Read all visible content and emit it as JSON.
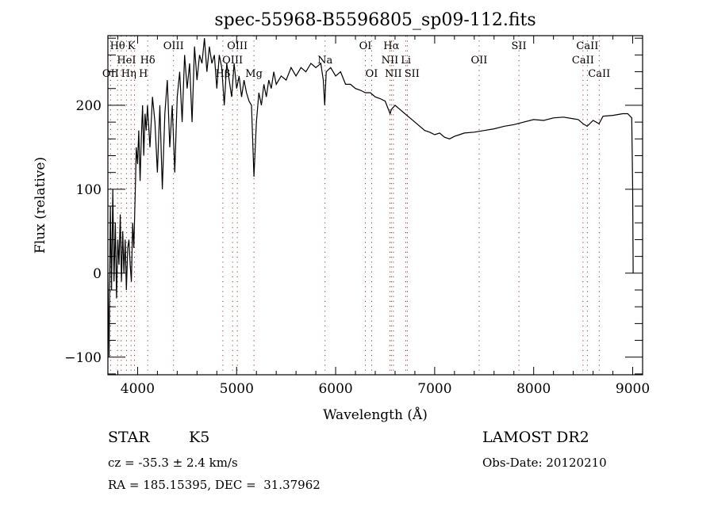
{
  "chart_data": {
    "type": "line",
    "title": "spec-55968-B5596805_sp09-112.fits",
    "xlabel": "Wavelength (Å)",
    "ylabel": "Flux (relative)",
    "xlim": [
      3700,
      9100
    ],
    "ylim": [
      -121,
      283
    ],
    "xticks": [
      4000,
      5000,
      6000,
      7000,
      8000,
      9000
    ],
    "yticks": [
      -100,
      0,
      100,
      200
    ],
    "grid": false,
    "colors": {
      "line": "#000000",
      "marker_lines": "#8b3a2a"
    },
    "spectrum": [
      [
        3700,
        0
      ],
      [
        3712,
        -100
      ],
      [
        3725,
        80
      ],
      [
        3737,
        -20
      ],
      [
        3750,
        100
      ],
      [
        3762,
        -10
      ],
      [
        3775,
        60
      ],
      [
        3787,
        -30
      ],
      [
        3800,
        40
      ],
      [
        3812,
        10
      ],
      [
        3825,
        70
      ],
      [
        3837,
        -10
      ],
      [
        3850,
        50
      ],
      [
        3862,
        0
      ],
      [
        3875,
        40
      ],
      [
        3887,
        -20
      ],
      [
        3900,
        30
      ],
      [
        3912,
        40
      ],
      [
        3925,
        10
      ],
      [
        3937,
        -10
      ],
      [
        3950,
        60
      ],
      [
        3962,
        30
      ],
      [
        3975,
        90
      ],
      [
        3987,
        150
      ],
      [
        4000,
        130
      ],
      [
        4012,
        170
      ],
      [
        4025,
        110
      ],
      [
        4037,
        160
      ],
      [
        4050,
        200
      ],
      [
        4062,
        140
      ],
      [
        4075,
        190
      ],
      [
        4087,
        170
      ],
      [
        4100,
        200
      ],
      [
        4125,
        150
      ],
      [
        4150,
        210
      ],
      [
        4175,
        180
      ],
      [
        4200,
        120
      ],
      [
        4225,
        200
      ],
      [
        4250,
        100
      ],
      [
        4275,
        190
      ],
      [
        4300,
        230
      ],
      [
        4325,
        150
      ],
      [
        4350,
        200
      ],
      [
        4375,
        120
      ],
      [
        4400,
        210
      ],
      [
        4425,
        240
      ],
      [
        4450,
        180
      ],
      [
        4475,
        260
      ],
      [
        4500,
        220
      ],
      [
        4525,
        250
      ],
      [
        4550,
        180
      ],
      [
        4575,
        270
      ],
      [
        4600,
        230
      ],
      [
        4625,
        260
      ],
      [
        4650,
        250
      ],
      [
        4675,
        280
      ],
      [
        4700,
        240
      ],
      [
        4725,
        270
      ],
      [
        4750,
        250
      ],
      [
        4775,
        260
      ],
      [
        4800,
        220
      ],
      [
        4825,
        260
      ],
      [
        4850,
        245
      ],
      [
        4875,
        200
      ],
      [
        4900,
        250
      ],
      [
        4925,
        230
      ],
      [
        4950,
        210
      ],
      [
        4975,
        250
      ],
      [
        5000,
        220
      ],
      [
        5025,
        235
      ],
      [
        5050,
        210
      ],
      [
        5075,
        230
      ],
      [
        5100,
        215
      ],
      [
        5125,
        205
      ],
      [
        5150,
        200
      ],
      [
        5175,
        115
      ],
      [
        5200,
        180
      ],
      [
        5225,
        215
      ],
      [
        5250,
        200
      ],
      [
        5275,
        225
      ],
      [
        5300,
        210
      ],
      [
        5325,
        230
      ],
      [
        5350,
        220
      ],
      [
        5375,
        240
      ],
      [
        5400,
        225
      ],
      [
        5450,
        235
      ],
      [
        5500,
        230
      ],
      [
        5550,
        245
      ],
      [
        5600,
        235
      ],
      [
        5650,
        245
      ],
      [
        5700,
        240
      ],
      [
        5750,
        250
      ],
      [
        5800,
        245
      ],
      [
        5850,
        250
      ],
      [
        5875,
        230
      ],
      [
        5890,
        200
      ],
      [
        5905,
        240
      ],
      [
        5950,
        245
      ],
      [
        6000,
        235
      ],
      [
        6050,
        240
      ],
      [
        6100,
        225
      ],
      [
        6150,
        225
      ],
      [
        6200,
        220
      ],
      [
        6250,
        218
      ],
      [
        6300,
        215
      ],
      [
        6350,
        215
      ],
      [
        6400,
        210
      ],
      [
        6450,
        208
      ],
      [
        6500,
        205
      ],
      [
        6550,
        190
      ],
      [
        6563,
        195
      ],
      [
        6600,
        200
      ],
      [
        6650,
        195
      ],
      [
        6700,
        190
      ],
      [
        6750,
        185
      ],
      [
        6800,
        180
      ],
      [
        6850,
        175
      ],
      [
        6900,
        170
      ],
      [
        6950,
        168
      ],
      [
        7000,
        165
      ],
      [
        7050,
        167
      ],
      [
        7100,
        162
      ],
      [
        7150,
        160
      ],
      [
        7200,
        163
      ],
      [
        7250,
        165
      ],
      [
        7300,
        167
      ],
      [
        7400,
        168
      ],
      [
        7500,
        170
      ],
      [
        7600,
        172
      ],
      [
        7700,
        175
      ],
      [
        7800,
        177
      ],
      [
        7900,
        180
      ],
      [
        8000,
        183
      ],
      [
        8100,
        182
      ],
      [
        8200,
        185
      ],
      [
        8300,
        186
      ],
      [
        8400,
        184
      ],
      [
        8450,
        183
      ],
      [
        8500,
        178
      ],
      [
        8540,
        175
      ],
      [
        8600,
        182
      ],
      [
        8660,
        178
      ],
      [
        8700,
        187
      ],
      [
        8800,
        188
      ],
      [
        8900,
        190
      ],
      [
        8950,
        190
      ],
      [
        8990,
        185
      ],
      [
        9000,
        100
      ],
      [
        9005,
        0
      ]
    ],
    "line_markers": [
      {
        "label": "Hθ",
        "wavelength": 3798,
        "row": 0
      },
      {
        "label": "K",
        "wavelength": 3934,
        "row": 0
      },
      {
        "label": "OIII",
        "wavelength": 4363,
        "row": 0
      },
      {
        "label": "OIII",
        "wavelength": 5007,
        "row": 0
      },
      {
        "label": "OI",
        "wavelength": 6300,
        "row": 0
      },
      {
        "label": "Hα",
        "wavelength": 6563,
        "row": 0
      },
      {
        "label": "SII",
        "wavelength": 7851,
        "row": 0
      },
      {
        "label": "CaII",
        "wavelength": 8542,
        "row": 0
      },
      {
        "label": "HeI",
        "wavelength": 3888,
        "row": 1
      },
      {
        "label": "Hδ",
        "wavelength": 4102,
        "row": 1
      },
      {
        "label": "OIII",
        "wavelength": 4959,
        "row": 1
      },
      {
        "label": "Na",
        "wavelength": 5893,
        "row": 1
      },
      {
        "label": "NII",
        "wavelength": 6548,
        "row": 1
      },
      {
        "label": "Li",
        "wavelength": 6708,
        "row": 1
      },
      {
        "label": "OII",
        "wavelength": 7449,
        "row": 1
      },
      {
        "label": "CaII",
        "wavelength": 8498,
        "row": 1
      },
      {
        "label": "OII",
        "wavelength": 3727,
        "row": 2
      },
      {
        "label": "Hη",
        "wavelength": 3835,
        "row": 2
      },
      {
        "label": "H",
        "wavelength": 3969,
        "row": 2
      },
      {
        "label": "Hβ",
        "wavelength": 4861,
        "row": 2
      },
      {
        "label": "Mg",
        "wavelength": 5175,
        "row": 2
      },
      {
        "label": "OI",
        "wavelength": 6364,
        "row": 2
      },
      {
        "label": "NII",
        "wavelength": 6583,
        "row": 2
      },
      {
        "label": "SII",
        "wavelength": 6724,
        "row": 2
      },
      {
        "label": "CaII",
        "wavelength": 8662,
        "row": 2
      }
    ]
  },
  "info": {
    "object_type": "STAR",
    "subclass": "K5",
    "redshift": "cz = -35.3 ± 2.4 km/s",
    "coords": "RA = 185.15395, DEC =  31.37962",
    "survey": "LAMOST DR2",
    "obs_date": "Obs-Date: 20120210"
  }
}
